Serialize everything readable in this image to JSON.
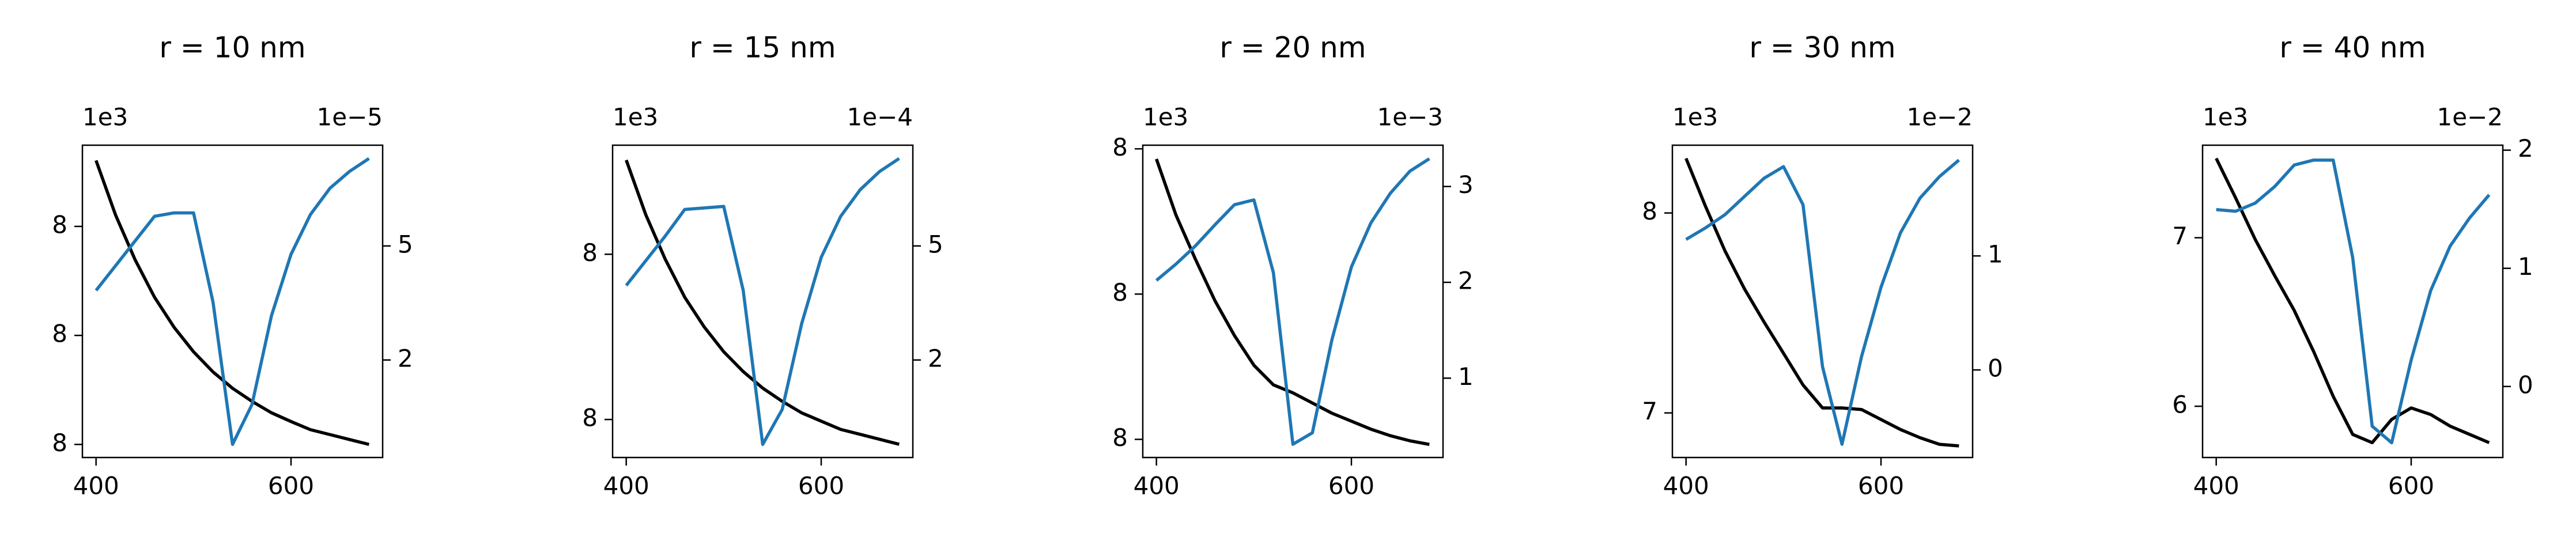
{
  "chart_data": [
    {
      "type": "line",
      "title": "r = 10 nm",
      "y_offset_text": "1e3",
      "y2_offset_text": "1e−5",
      "x": [
        400,
        420,
        440,
        460,
        480,
        500,
        520,
        540,
        560,
        580,
        600,
        620,
        640,
        660,
        680
      ],
      "xlim": [
        386,
        694
      ],
      "xticks": [
        400,
        600
      ],
      "ylim": [
        7.9776,
        8.0349
      ],
      "yticks": [
        {
          "value": 7.98,
          "label": "8"
        },
        {
          "value": 8.0,
          "label": "8"
        },
        {
          "value": 8.02,
          "label": "8"
        }
      ],
      "y2lim": [
        -0.565,
        7.65
      ],
      "y2ticks": [
        2,
        5
      ],
      "series": [
        {
          "color": "#000000",
          "values": [
            8.0321,
            8.0221,
            8.0139,
            8.007,
            8.0015,
            7.997,
            7.9933,
            7.9903,
            7.9879,
            7.9858,
            7.9842,
            7.9827,
            7.9818,
            7.9809,
            7.98
          ]
        },
        {
          "color": "#1f77b4",
          "axis": "y2",
          "values": [
            3.83,
            4.48,
            5.13,
            5.78,
            5.87,
            5.87,
            3.52,
            -0.22,
            0.83,
            3.17,
            4.78,
            5.83,
            6.52,
            6.96,
            7.3
          ]
        }
      ]
    },
    {
      "type": "line",
      "title": "r = 15 nm",
      "y_offset_text": "1e3",
      "y2_offset_text": "1e−4",
      "x": [
        400,
        420,
        440,
        460,
        480,
        500,
        520,
        540,
        560,
        580,
        600,
        620,
        640,
        660,
        680
      ],
      "xlim": [
        386,
        694
      ],
      "xticks": [
        400,
        600
      ],
      "ylim": [
        7.9854,
        8.0232
      ],
      "yticks": [
        {
          "value": 7.99,
          "label": "8"
        },
        {
          "value": 8.01,
          "label": "8"
        }
      ],
      "y2lim": [
        -0.565,
        7.65
      ],
      "y2ticks": [
        2,
        5
      ],
      "series": [
        {
          "color": "#000000",
          "values": [
            8.0214,
            8.0148,
            8.0094,
            8.0048,
            8.0012,
            7.9982,
            7.9958,
            7.9938,
            7.9922,
            7.9908,
            7.9898,
            7.9888,
            7.9882,
            7.9876,
            7.987
          ]
        },
        {
          "color": "#1f77b4",
          "axis": "y2",
          "values": [
            3.96,
            4.61,
            5.26,
            5.96,
            6.0,
            6.04,
            3.83,
            -0.22,
            0.7,
            2.96,
            4.7,
            5.78,
            6.48,
            6.96,
            7.3
          ]
        }
      ]
    },
    {
      "type": "line",
      "title": "r = 20 nm",
      "y_offset_text": "1e3",
      "y2_offset_text": "1e−3",
      "x": [
        400,
        420,
        440,
        460,
        480,
        500,
        520,
        540,
        560,
        580,
        600,
        620,
        640,
        660,
        680
      ],
      "xlim": [
        386,
        694
      ],
      "xticks": [
        400,
        600
      ],
      "ylim": [
        7.9775,
        8.0205
      ],
      "yticks": [
        {
          "value": 7.98,
          "label": "8"
        },
        {
          "value": 8.0,
          "label": "8"
        },
        {
          "value": 8.02,
          "label": "8"
        }
      ],
      "y2lim": [
        0.172,
        3.431
      ],
      "y2ticks": [
        1,
        2,
        3
      ],
      "series": [
        {
          "color": "#000000",
          "values": [
            8.0186,
            8.0109,
            8.0048,
            7.9991,
            7.9943,
            7.9902,
            7.9875,
            7.9864,
            7.985,
            7.9836,
            7.9825,
            7.9814,
            7.9805,
            7.9798,
            7.9793
          ]
        },
        {
          "color": "#1f77b4",
          "axis": "y2",
          "values": [
            2.02,
            2.19,
            2.38,
            2.6,
            2.81,
            2.86,
            2.1,
            0.31,
            0.43,
            1.4,
            2.16,
            2.62,
            2.93,
            3.16,
            3.29
          ]
        }
      ]
    },
    {
      "type": "line",
      "title": "r = 30 nm",
      "y_offset_text": "1e3",
      "y2_offset_text": "1e−2",
      "x": [
        400,
        420,
        440,
        460,
        480,
        500,
        520,
        540,
        560,
        580,
        600,
        620,
        640,
        660,
        680
      ],
      "xlim": [
        386,
        694
      ],
      "xticks": [
        400,
        600
      ],
      "ylim": [
        6.777,
        8.339
      ],
      "yticks": [
        7,
        8
      ],
      "y2lim": [
        -0.768,
        1.971
      ],
      "y2ticks": [
        0,
        1
      ],
      "series": [
        {
          "color": "#000000",
          "values": [
            8.273,
            8.033,
            7.81,
            7.62,
            7.455,
            7.298,
            7.14,
            7.025,
            7.025,
            7.017,
            6.967,
            6.917,
            6.876,
            6.843,
            6.835
          ]
        },
        {
          "color": "#1f77b4",
          "axis": "y2",
          "values": [
            1.145,
            1.246,
            1.362,
            1.522,
            1.681,
            1.783,
            1.449,
            0.029,
            -0.652,
            0.116,
            0.725,
            1.203,
            1.507,
            1.696,
            1.841
          ]
        }
      ]
    },
    {
      "type": "line",
      "title": "r = 40 nm",
      "y_offset_text": "1e3",
      "y2_offset_text": "1e−2",
      "x": [
        400,
        420,
        440,
        460,
        480,
        500,
        520,
        540,
        560,
        580,
        600,
        620,
        640,
        660,
        680
      ],
      "xlim": [
        386,
        694
      ],
      "xticks": [
        400,
        600
      ],
      "ylim": [
        5.696,
        7.549
      ],
      "yticks": [
        6,
        7
      ],
      "y2lim": [
        -0.601,
        2.042
      ],
      "y2ticks": [
        0,
        1,
        2
      ],
      "series": [
        {
          "color": "#000000",
          "values": [
            7.471,
            7.235,
            6.99,
            6.775,
            6.569,
            6.324,
            6.059,
            5.833,
            5.784,
            5.922,
            5.99,
            5.951,
            5.882,
            5.833,
            5.784
          ]
        },
        {
          "color": "#1f77b4",
          "axis": "y2",
          "values": [
            1.497,
            1.483,
            1.552,
            1.692,
            1.874,
            1.916,
            1.916,
            1.091,
            -0.336,
            -0.476,
            0.224,
            0.811,
            1.189,
            1.427,
            1.622
          ]
        }
      ]
    }
  ]
}
